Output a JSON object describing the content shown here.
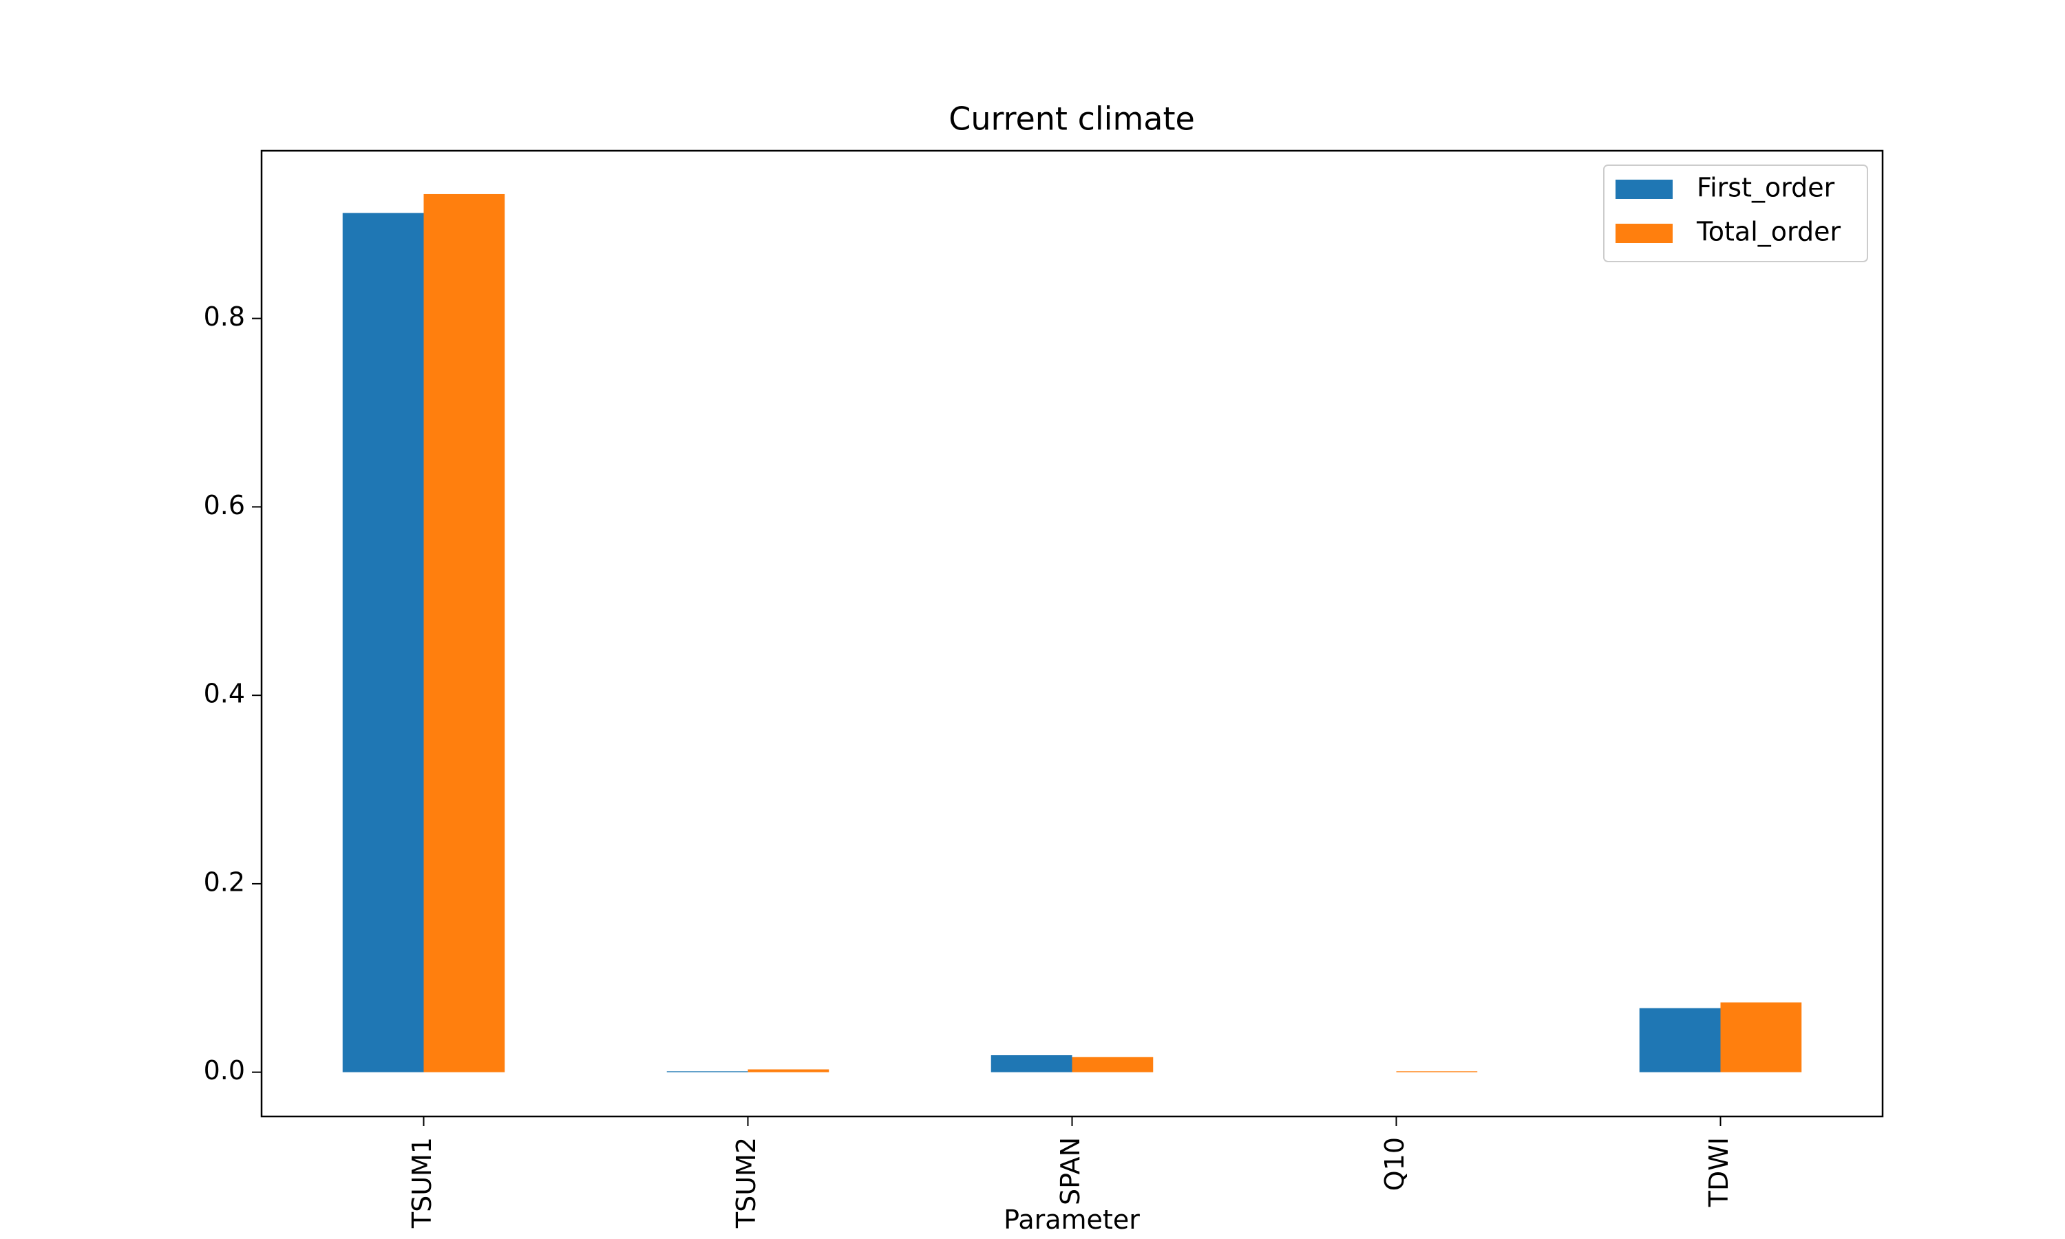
{
  "chart_data": {
    "type": "bar",
    "title": "Current climate",
    "x_label": "Parameter",
    "categories": [
      "TSUM1",
      "TSUM2",
      "SPAN",
      "Q10",
      "TDWI"
    ],
    "series": [
      {
        "name": "First_order",
        "color": "#1f77b4",
        "values": [
          0.912,
          0.001,
          0.018,
          0,
          0.068
        ]
      },
      {
        "name": "Total_order",
        "color": "#ff7f0e",
        "values": [
          0.932,
          0.003,
          0.016,
          0.001,
          0.074
        ]
      }
    ],
    "ylim": [
      -0.047,
      0.978
    ],
    "yticks": [
      {
        "value": 0,
        "label": "0.0"
      },
      0.2,
      0.4,
      0.6,
      0.8
    ],
    "legend": "upper right"
  }
}
